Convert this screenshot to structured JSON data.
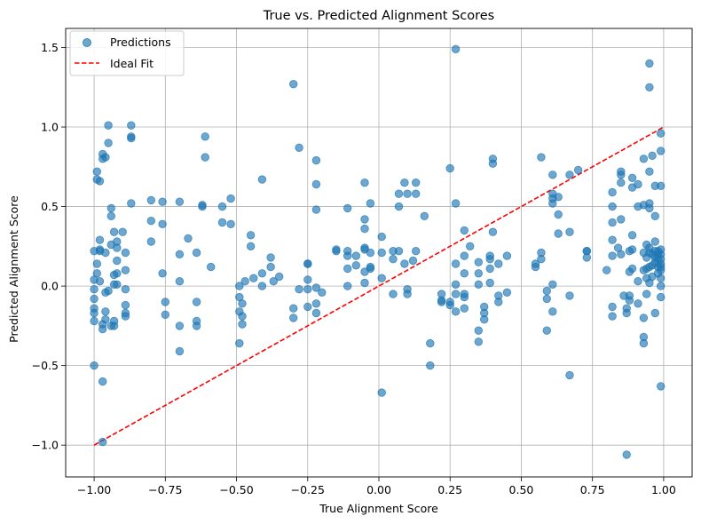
{
  "chart_data": {
    "type": "scatter",
    "title": "True vs. Predicted Alignment Scores",
    "xlabel": "True Alignment Score",
    "ylabel": "Predicted Alignment Score",
    "xlim": [
      -1.1,
      1.1
    ],
    "ylim": [
      -1.2,
      1.62
    ],
    "xticks": [
      -1.0,
      -0.75,
      -0.5,
      -0.25,
      0.0,
      0.25,
      0.5,
      0.75,
      1.0
    ],
    "xtick_labels": [
      "−1.00",
      "−0.75",
      "−0.50",
      "−0.25",
      "0.00",
      "0.25",
      "0.50",
      "0.75",
      "1.00"
    ],
    "yticks": [
      -1.0,
      -0.5,
      0.0,
      0.5,
      1.0,
      1.5
    ],
    "ytick_labels": [
      "−1.0",
      "−0.5",
      "0.0",
      "0.5",
      "1.0",
      "1.5"
    ],
    "grid": true,
    "legend_position": "top-left",
    "legend": [
      {
        "label": "Predictions",
        "kind": "marker",
        "color": "#1f77b4"
      },
      {
        "label": "Ideal Fit",
        "kind": "dashed-line",
        "color": "#ff0000"
      }
    ],
    "ideal_fit": {
      "name": "Ideal Fit",
      "x": [
        -1.0,
        1.0
      ],
      "y": [
        -1.0,
        1.0
      ],
      "color": "#ff0000",
      "style": "dashed"
    },
    "series": [
      {
        "name": "Predictions",
        "color": "#1f77b4",
        "points": [
          [
            -1.0,
            0.22
          ],
          [
            -1.0,
            0.04
          ],
          [
            -1.0,
            -0.02
          ],
          [
            -1.0,
            -0.08
          ],
          [
            -1.0,
            -0.14
          ],
          [
            -1.0,
            -0.17
          ],
          [
            -1.0,
            -0.22
          ],
          [
            -1.0,
            -0.5
          ],
          [
            -0.99,
            0.72
          ],
          [
            -0.99,
            0.67
          ],
          [
            -0.99,
            0.14
          ],
          [
            -0.99,
            0.08
          ],
          [
            -0.98,
            0.66
          ],
          [
            -0.98,
            0.29
          ],
          [
            -0.98,
            0.23
          ],
          [
            -0.98,
            0.22
          ],
          [
            -0.98,
            0.03
          ],
          [
            -0.97,
            0.83
          ],
          [
            -0.97,
            0.8
          ],
          [
            -0.97,
            -0.24
          ],
          [
            -0.97,
            -0.27
          ],
          [
            -0.97,
            -0.6
          ],
          [
            -0.97,
            -0.98
          ],
          [
            -0.96,
            0.81
          ],
          [
            -0.96,
            0.21
          ],
          [
            -0.96,
            -0.04
          ],
          [
            -0.96,
            -0.16
          ],
          [
            -0.96,
            -0.21
          ],
          [
            -0.95,
            1.01
          ],
          [
            -0.95,
            0.9
          ],
          [
            -0.95,
            -0.03
          ],
          [
            -0.94,
            0.49
          ],
          [
            -0.94,
            0.44
          ],
          [
            -0.94,
            0.26
          ],
          [
            -0.94,
            -0.25
          ],
          [
            -0.93,
            0.34
          ],
          [
            -0.93,
            0.07
          ],
          [
            -0.93,
            0.01
          ],
          [
            -0.93,
            -0.22
          ],
          [
            -0.93,
            -0.25
          ],
          [
            -0.92,
            0.28
          ],
          [
            -0.92,
            0.24
          ],
          [
            -0.92,
            0.16
          ],
          [
            -0.92,
            0.08
          ],
          [
            -0.92,
            0.01
          ],
          [
            -0.9,
            0.34
          ],
          [
            -0.89,
            0.1
          ],
          [
            -0.89,
            -0.02
          ],
          [
            -0.89,
            -0.12
          ],
          [
            -0.89,
            -0.17
          ],
          [
            -0.89,
            -0.19
          ],
          [
            -0.89,
            0.21
          ],
          [
            -0.87,
            1.01
          ],
          [
            -0.87,
            0.94
          ],
          [
            -0.87,
            0.93
          ],
          [
            -0.87,
            0.52
          ],
          [
            -0.8,
            0.54
          ],
          [
            -0.8,
            0.41
          ],
          [
            -0.8,
            0.28
          ],
          [
            -0.76,
            0.53
          ],
          [
            -0.76,
            0.39
          ],
          [
            -0.76,
            0.08
          ],
          [
            -0.75,
            -0.1
          ],
          [
            -0.75,
            -0.18
          ],
          [
            -0.7,
            0.53
          ],
          [
            -0.7,
            0.2
          ],
          [
            -0.7,
            0.03
          ],
          [
            -0.7,
            -0.25
          ],
          [
            -0.7,
            -0.41
          ],
          [
            -0.67,
            0.3
          ],
          [
            -0.64,
            0.21
          ],
          [
            -0.64,
            -0.1
          ],
          [
            -0.64,
            -0.22
          ],
          [
            -0.64,
            -0.25
          ],
          [
            -0.62,
            0.51
          ],
          [
            -0.62,
            0.5
          ],
          [
            -0.61,
            0.94
          ],
          [
            -0.61,
            0.81
          ],
          [
            -0.59,
            0.12
          ],
          [
            -0.55,
            0.5
          ],
          [
            -0.55,
            0.4
          ],
          [
            -0.52,
            0.55
          ],
          [
            -0.52,
            0.39
          ],
          [
            -0.49,
            -0.36
          ],
          [
            -0.49,
            0.0
          ],
          [
            -0.49,
            -0.07
          ],
          [
            -0.49,
            -0.16
          ],
          [
            -0.48,
            -0.19
          ],
          [
            -0.48,
            -0.24
          ],
          [
            -0.48,
            -0.11
          ],
          [
            -0.47,
            0.03
          ],
          [
            -0.45,
            0.32
          ],
          [
            -0.45,
            0.25
          ],
          [
            -0.44,
            0.05
          ],
          [
            -0.41,
            0.67
          ],
          [
            -0.41,
            0.08
          ],
          [
            -0.41,
            0.0
          ],
          [
            -0.38,
            0.18
          ],
          [
            -0.38,
            0.12
          ],
          [
            -0.37,
            0.03
          ],
          [
            -0.35,
            0.06
          ],
          [
            -0.3,
            1.27
          ],
          [
            -0.3,
            -0.14
          ],
          [
            -0.3,
            -0.2
          ],
          [
            -0.28,
            0.87
          ],
          [
            -0.28,
            -0.02
          ],
          [
            -0.25,
            0.14
          ],
          [
            -0.25,
            0.14
          ],
          [
            -0.25,
            0.04
          ],
          [
            -0.25,
            -0.02
          ],
          [
            -0.25,
            -0.13
          ],
          [
            -0.22,
            0.79
          ],
          [
            -0.22,
            0.64
          ],
          [
            -0.22,
            0.48
          ],
          [
            -0.22,
            -0.01
          ],
          [
            -0.22,
            -0.11
          ],
          [
            -0.22,
            -0.17
          ],
          [
            -0.2,
            -0.04
          ],
          [
            -0.15,
            0.23
          ],
          [
            -0.15,
            0.22
          ],
          [
            -0.11,
            0.49
          ],
          [
            -0.11,
            0.22
          ],
          [
            -0.11,
            0.19
          ],
          [
            -0.11,
            0.11
          ],
          [
            -0.11,
            0.0
          ],
          [
            -0.08,
            0.19
          ],
          [
            -0.08,
            0.13
          ],
          [
            -0.05,
            0.65
          ],
          [
            -0.05,
            0.42
          ],
          [
            -0.05,
            0.36
          ],
          [
            -0.05,
            0.24
          ],
          [
            -0.05,
            0.23
          ],
          [
            -0.05,
            0.09
          ],
          [
            -0.05,
            0.02
          ],
          [
            -0.03,
            0.52
          ],
          [
            -0.03,
            0.12
          ],
          [
            -0.03,
            0.21
          ],
          [
            -0.03,
            0.11
          ],
          [
            0.01,
            0.31
          ],
          [
            0.01,
            0.21
          ],
          [
            0.01,
            0.05
          ],
          [
            0.01,
            -0.67
          ],
          [
            0.05,
            0.22
          ],
          [
            0.05,
            0.17
          ],
          [
            0.05,
            -0.05
          ],
          [
            0.07,
            0.58
          ],
          [
            0.07,
            0.5
          ],
          [
            0.07,
            0.22
          ],
          [
            0.09,
            0.14
          ],
          [
            0.09,
            0.65
          ],
          [
            0.1,
            0.58
          ],
          [
            0.1,
            -0.02
          ],
          [
            0.1,
            -0.05
          ],
          [
            0.12,
            0.16
          ],
          [
            0.13,
            0.65
          ],
          [
            0.13,
            0.58
          ],
          [
            0.13,
            0.22
          ],
          [
            0.16,
            0.44
          ],
          [
            0.18,
            -0.36
          ],
          [
            0.18,
            -0.5
          ],
          [
            0.22,
            -0.05
          ],
          [
            0.22,
            -0.09
          ],
          [
            0.22,
            -0.1
          ],
          [
            0.25,
            0.74
          ],
          [
            0.25,
            -0.1
          ],
          [
            0.25,
            -0.12
          ],
          [
            0.27,
            1.49
          ],
          [
            0.27,
            0.52
          ],
          [
            0.27,
            0.14
          ],
          [
            0.27,
            0.01
          ],
          [
            0.27,
            -0.05
          ],
          [
            0.27,
            -0.16
          ],
          [
            0.3,
            0.35
          ],
          [
            0.3,
            0.19
          ],
          [
            0.3,
            0.08
          ],
          [
            0.3,
            -0.05
          ],
          [
            0.3,
            -0.07
          ],
          [
            0.3,
            -0.14
          ],
          [
            0.32,
            0.25
          ],
          [
            0.35,
            0.15
          ],
          [
            0.35,
            0.08
          ],
          [
            0.35,
            0.01
          ],
          [
            0.35,
            -0.28
          ],
          [
            0.35,
            -0.35
          ],
          [
            0.37,
            -0.13
          ],
          [
            0.37,
            -0.17
          ],
          [
            0.37,
            -0.21
          ],
          [
            0.39,
            0.19
          ],
          [
            0.39,
            0.17
          ],
          [
            0.39,
            0.11
          ],
          [
            0.39,
            0.02
          ],
          [
            0.4,
            0.8
          ],
          [
            0.4,
            0.77
          ],
          [
            0.4,
            0.34
          ],
          [
            0.42,
            0.14
          ],
          [
            0.42,
            -0.06
          ],
          [
            0.42,
            -0.1
          ],
          [
            0.45,
            0.19
          ],
          [
            0.45,
            -0.04
          ],
          [
            0.55,
            0.14
          ],
          [
            0.55,
            0.12
          ],
          [
            0.57,
            0.81
          ],
          [
            0.57,
            0.21
          ],
          [
            0.57,
            0.17
          ],
          [
            0.59,
            -0.03
          ],
          [
            0.59,
            -0.08
          ],
          [
            0.59,
            -0.28
          ],
          [
            0.61,
            0.7
          ],
          [
            0.61,
            0.58
          ],
          [
            0.61,
            0.55
          ],
          [
            0.61,
            0.52
          ],
          [
            0.61,
            0.01
          ],
          [
            0.61,
            -0.16
          ],
          [
            0.63,
            0.56
          ],
          [
            0.63,
            0.45
          ],
          [
            0.63,
            0.33
          ],
          [
            0.67,
            0.7
          ],
          [
            0.67,
            0.34
          ],
          [
            0.67,
            -0.06
          ],
          [
            0.67,
            -0.56
          ],
          [
            0.7,
            0.73
          ],
          [
            0.73,
            0.22
          ],
          [
            0.73,
            0.22
          ],
          [
            0.73,
            0.18
          ],
          [
            0.8,
            0.1
          ],
          [
            0.82,
            0.59
          ],
          [
            0.82,
            0.5
          ],
          [
            0.82,
            0.4
          ],
          [
            0.82,
            0.29
          ],
          [
            0.82,
            0.19
          ],
          [
            0.82,
            -0.13
          ],
          [
            0.82,
            -0.19
          ],
          [
            0.84,
            0.24
          ],
          [
            0.85,
            0.72
          ],
          [
            0.85,
            0.7
          ],
          [
            0.85,
            0.65
          ],
          [
            0.85,
            0.42
          ],
          [
            0.85,
            0.2
          ],
          [
            0.86,
            -0.06
          ],
          [
            0.87,
            -1.06
          ],
          [
            0.87,
            -0.14
          ],
          [
            0.87,
            -0.17
          ],
          [
            0.88,
            0.22
          ],
          [
            0.88,
            0.09
          ],
          [
            0.88,
            -0.06
          ],
          [
            0.88,
            -0.09
          ],
          [
            0.89,
            0.68
          ],
          [
            0.89,
            0.62
          ],
          [
            0.89,
            0.32
          ],
          [
            0.89,
            0.23
          ],
          [
            0.89,
            0.11
          ],
          [
            0.91,
            0.64
          ],
          [
            0.91,
            0.5
          ],
          [
            0.91,
            0.03
          ],
          [
            0.91,
            -0.11
          ],
          [
            0.93,
            0.8
          ],
          [
            0.93,
            0.51
          ],
          [
            0.93,
            0.21
          ],
          [
            0.93,
            0.1
          ],
          [
            0.93,
            -0.2
          ],
          [
            0.93,
            -0.32
          ],
          [
            0.93,
            -0.36
          ],
          [
            0.94,
            0.26
          ],
          [
            0.94,
            0.18
          ],
          [
            0.94,
            0.11
          ],
          [
            0.94,
            0.05
          ],
          [
            0.94,
            -0.05
          ],
          [
            0.95,
            1.4
          ],
          [
            0.95,
            1.25
          ],
          [
            0.95,
            0.72
          ],
          [
            0.95,
            0.52
          ],
          [
            0.95,
            0.49
          ],
          [
            0.95,
            0.24
          ],
          [
            0.95,
            0.21
          ],
          [
            0.95,
            0.12
          ],
          [
            0.95,
            0.02
          ],
          [
            0.96,
            0.82
          ],
          [
            0.96,
            0.2
          ],
          [
            0.96,
            0.13
          ],
          [
            0.96,
            0.06
          ],
          [
            0.97,
            0.63
          ],
          [
            0.97,
            0.44
          ],
          [
            0.97,
            0.28
          ],
          [
            0.97,
            0.22
          ],
          [
            0.97,
            0.18
          ],
          [
            0.97,
            0.15
          ],
          [
            0.97,
            -0.17
          ],
          [
            0.98,
            0.22
          ],
          [
            0.98,
            0.2
          ],
          [
            0.98,
            0.17
          ],
          [
            0.98,
            0.12
          ],
          [
            0.98,
            0.08
          ],
          [
            0.99,
            0.96
          ],
          [
            0.99,
            0.85
          ],
          [
            0.99,
            0.63
          ],
          [
            0.99,
            0.23
          ],
          [
            0.99,
            0.2
          ],
          [
            0.99,
            0.17
          ],
          [
            0.99,
            0.14
          ],
          [
            0.99,
            0.12
          ],
          [
            0.99,
            0.1
          ],
          [
            0.99,
            0.05
          ],
          [
            0.99,
            0.0
          ],
          [
            0.99,
            -0.07
          ],
          [
            0.99,
            -0.63
          ]
        ]
      }
    ]
  }
}
